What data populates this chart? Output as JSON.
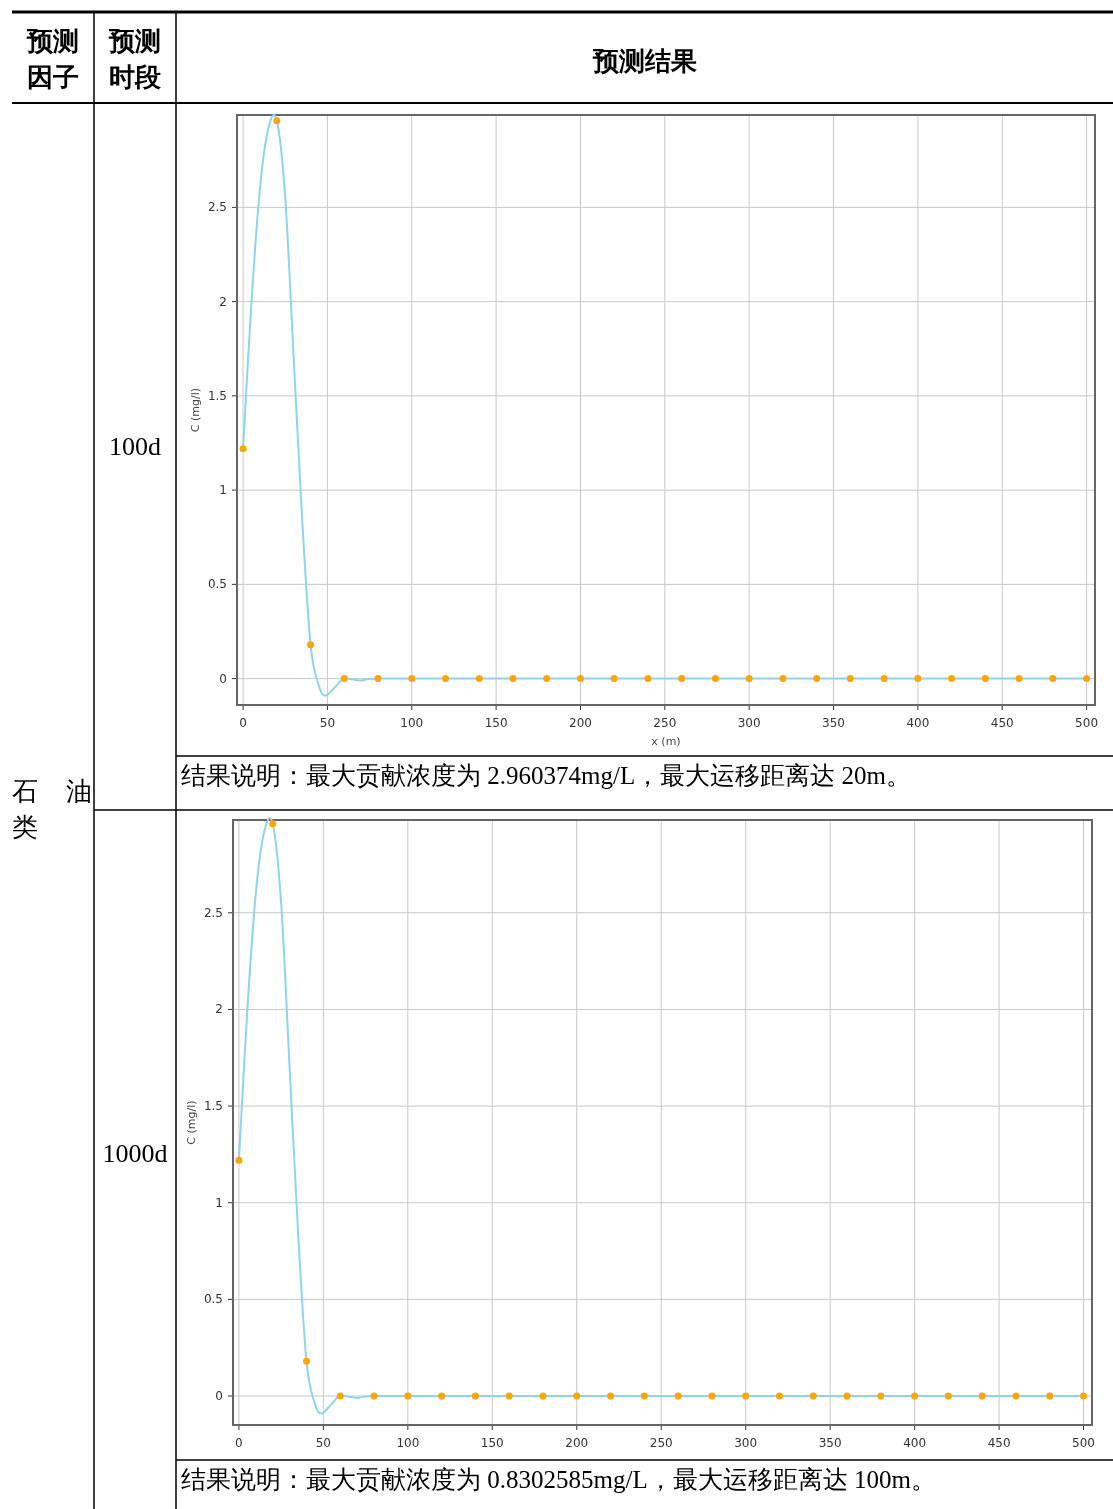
{
  "chart_data": [
    {
      "type": "other",
      "annotations": [
        "预测因子",
        "预测时段",
        "预测结果",
        "石油类"
      ]
    },
    {
      "type": "line",
      "xlabel": "x (m)",
      "ylabel": "C (mg/l)",
      "xlim": [
        -3.6,
        505
      ],
      "ylim": [
        -0.14,
        2.99
      ],
      "xticks": [
        0,
        50,
        100,
        150,
        200,
        250,
        300,
        350,
        400,
        450,
        500
      ],
      "yticks": [
        0,
        0.5,
        1,
        1.5,
        2,
        2.5
      ],
      "grid": true,
      "annotations": [
        "100d",
        "结果说明：最大贡献浓度为 2.960374mg/L，最大运移距离达 20m。"
      ],
      "series": [
        {
          "type": "line",
          "color": "#8fd3ee",
          "x": [
            0,
            5,
            10,
            15,
            20,
            25,
            30,
            35,
            40,
            45,
            49,
            55,
            60,
            70,
            80,
            500
          ],
          "values": [
            1.22,
            2.0,
            2.6,
            2.92,
            2.96,
            2.55,
            1.7,
            0.85,
            0.18,
            -0.04,
            -0.09,
            -0.04,
            0,
            -0.01,
            0,
            0
          ]
        },
        {
          "type": "scatter",
          "marker": "circle",
          "color": "#ffa500",
          "x": [
            0,
            20,
            40,
            60,
            80,
            100,
            120,
            140,
            160,
            180,
            200,
            220,
            240,
            260,
            280,
            300,
            320,
            340,
            360,
            380,
            400,
            420,
            440,
            460,
            480,
            500
          ],
          "values": [
            1.22,
            2.96,
            0.18,
            0,
            0,
            0,
            0,
            0,
            0,
            0,
            0,
            0,
            0,
            0,
            0,
            0,
            0,
            0,
            0,
            0,
            0,
            0,
            0,
            0,
            0,
            0
          ]
        }
      ]
    },
    {
      "type": "line",
      "ylabel": "C (mg/l)",
      "xlim": [
        -3.5,
        505
      ],
      "ylim": [
        -0.15,
        2.98
      ],
      "xticks": [
        0,
        50,
        100,
        150,
        200,
        250,
        300,
        350,
        400,
        450,
        500
      ],
      "yticks": [
        0,
        0.5,
        1,
        1.5,
        2,
        2.5
      ],
      "grid": true,
      "annotations": [
        "1000d",
        "结果说明：最大贡献浓度为 0.8302585mg/L，最大运移距离达 100m。"
      ],
      "series": [
        {
          "type": "line",
          "color": "#8fd3ee",
          "x": [
            0,
            5,
            10,
            15,
            20,
            25,
            30,
            35,
            40,
            45,
            49,
            55,
            60,
            70,
            80,
            500
          ],
          "values": [
            1.22,
            2.0,
            2.6,
            2.92,
            2.96,
            2.55,
            1.7,
            0.85,
            0.18,
            -0.04,
            -0.09,
            -0.04,
            0,
            -0.01,
            0,
            0
          ]
        },
        {
          "type": "scatter",
          "marker": "circle",
          "color": "#ffa500",
          "x": [
            0,
            20,
            40,
            60,
            80,
            100,
            120,
            140,
            160,
            180,
            200,
            220,
            240,
            260,
            280,
            300,
            320,
            340,
            360,
            380,
            400,
            420,
            440,
            460,
            480,
            500
          ],
          "values": [
            1.22,
            2.96,
            0.18,
            0,
            0,
            0,
            0,
            0,
            0,
            0,
            0,
            0,
            0,
            0,
            0,
            0,
            0,
            0,
            0,
            0,
            0,
            0,
            0,
            0,
            0,
            0
          ]
        }
      ]
    }
  ]
}
